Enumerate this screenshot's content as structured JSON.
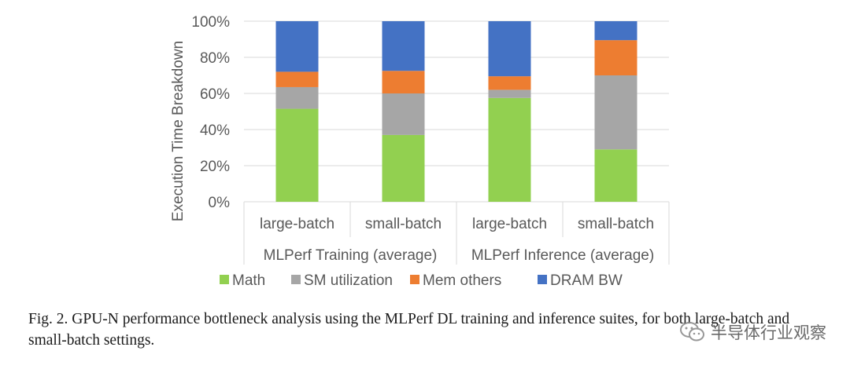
{
  "chart_data": {
    "type": "bar",
    "stacked": true,
    "ylabel": "Execution Time Breakdown",
    "ylim": [
      0,
      100
    ],
    "yticks": [
      "0%",
      "20%",
      "40%",
      "60%",
      "80%",
      "100%"
    ],
    "categories": [
      "large-batch",
      "small-batch",
      "large-batch",
      "small-batch"
    ],
    "groups": [
      "MLPerf Training (average)",
      "MLPerf Inference (average)"
    ],
    "legend_position": "bottom",
    "grid": true,
    "series": [
      {
        "name": "Math",
        "color": "#92D050",
        "values": [
          51.5,
          37,
          57.5,
          29
        ]
      },
      {
        "name": "SM utilization",
        "color": "#A6A6A6",
        "values": [
          12,
          23,
          4.5,
          41
        ]
      },
      {
        "name": "Mem others",
        "color": "#ED7D31",
        "values": [
          8.5,
          12.5,
          7.5,
          19.5
        ]
      },
      {
        "name": "DRAM BW",
        "color": "#4472C4",
        "values": [
          28,
          27.5,
          30.5,
          10.5
        ]
      }
    ]
  },
  "caption": "Fig. 2.  GPU-N performance bottleneck analysis using the MLPerf DL training and inference suites, for both large-batch and small-batch settings.",
  "watermark": {
    "text": "半导体行业观察",
    "icon": "wechat-icon"
  }
}
